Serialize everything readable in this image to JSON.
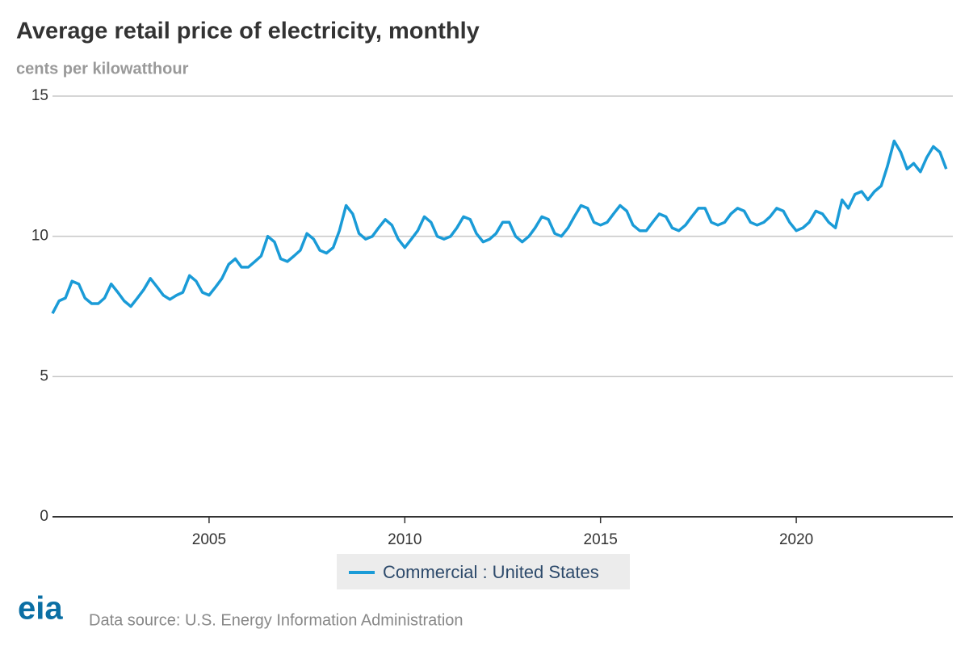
{
  "chart_data": {
    "type": "line",
    "title": "Average retail price of electricity, monthly",
    "subtitle": "cents per kilowatthour",
    "source": "Data source: U.S. Energy Information Administration",
    "logo": "eia",
    "xlim": [
      2001,
      2024
    ],
    "xticks": [
      2005,
      2010,
      2015,
      2020
    ],
    "ylim": [
      0,
      15
    ],
    "yticks": [
      0,
      5,
      10,
      15
    ],
    "grid": true,
    "x": [
      2001,
      2001.17,
      2001.33,
      2001.5,
      2001.67,
      2001.83,
      2002,
      2002.17,
      2002.33,
      2002.5,
      2002.67,
      2002.83,
      2003,
      2003.17,
      2003.33,
      2003.5,
      2003.67,
      2003.83,
      2004,
      2004.17,
      2004.33,
      2004.5,
      2004.67,
      2004.83,
      2005,
      2005.17,
      2005.33,
      2005.5,
      2005.67,
      2005.83,
      2006,
      2006.17,
      2006.33,
      2006.5,
      2006.67,
      2006.83,
      2007,
      2007.17,
      2007.33,
      2007.5,
      2007.67,
      2007.83,
      2008,
      2008.17,
      2008.33,
      2008.5,
      2008.67,
      2008.83,
      2009,
      2009.17,
      2009.33,
      2009.5,
      2009.67,
      2009.83,
      2010,
      2010.17,
      2010.33,
      2010.5,
      2010.67,
      2010.83,
      2011,
      2011.17,
      2011.33,
      2011.5,
      2011.67,
      2011.83,
      2012,
      2012.17,
      2012.33,
      2012.5,
      2012.67,
      2012.83,
      2013,
      2013.17,
      2013.33,
      2013.5,
      2013.67,
      2013.83,
      2014,
      2014.17,
      2014.33,
      2014.5,
      2014.67,
      2014.83,
      2015,
      2015.17,
      2015.33,
      2015.5,
      2015.67,
      2015.83,
      2016,
      2016.17,
      2016.33,
      2016.5,
      2016.67,
      2016.83,
      2017,
      2017.17,
      2017.33,
      2017.5,
      2017.67,
      2017.83,
      2018,
      2018.17,
      2018.33,
      2018.5,
      2018.67,
      2018.83,
      2019,
      2019.17,
      2019.33,
      2019.5,
      2019.67,
      2019.83,
      2020,
      2020.17,
      2020.33,
      2020.5,
      2020.67,
      2020.83,
      2021,
      2021.17,
      2021.33,
      2021.5,
      2021.67,
      2021.83,
      2022,
      2022.17,
      2022.33,
      2022.5,
      2022.67,
      2022.83,
      2023,
      2023.17,
      2023.33,
      2023.5,
      2023.67,
      2023.83
    ],
    "series": [
      {
        "name": "Commercial : United States",
        "color": "#1a9bd7",
        "values": [
          7.25,
          7.7,
          7.8,
          8.4,
          8.3,
          7.8,
          7.6,
          7.6,
          7.8,
          8.3,
          8.0,
          7.7,
          7.5,
          7.8,
          8.1,
          8.5,
          8.2,
          7.9,
          7.75,
          7.9,
          8.0,
          8.6,
          8.4,
          8.0,
          7.9,
          8.2,
          8.5,
          9.0,
          9.2,
          8.9,
          8.9,
          9.1,
          9.3,
          10.0,
          9.8,
          9.2,
          9.1,
          9.3,
          9.5,
          10.1,
          9.9,
          9.5,
          9.4,
          9.6,
          10.2,
          11.1,
          10.8,
          10.1,
          9.9,
          10.0,
          10.3,
          10.6,
          10.4,
          9.9,
          9.6,
          9.9,
          10.2,
          10.7,
          10.5,
          10.0,
          9.9,
          10.0,
          10.3,
          10.7,
          10.6,
          10.1,
          9.8,
          9.9,
          10.1,
          10.5,
          10.5,
          10.0,
          9.8,
          10.0,
          10.3,
          10.7,
          10.6,
          10.1,
          10.0,
          10.3,
          10.7,
          11.1,
          11.0,
          10.5,
          10.4,
          10.5,
          10.8,
          11.1,
          10.9,
          10.4,
          10.2,
          10.2,
          10.5,
          10.8,
          10.7,
          10.3,
          10.2,
          10.4,
          10.7,
          11.0,
          11.0,
          10.5,
          10.4,
          10.5,
          10.8,
          11.0,
          10.9,
          10.5,
          10.4,
          10.5,
          10.7,
          11.0,
          10.9,
          10.5,
          10.2,
          10.3,
          10.5,
          10.9,
          10.8,
          10.5,
          10.3,
          11.3,
          11.0,
          11.5,
          11.6,
          11.3,
          11.6,
          11.8,
          12.5,
          13.4,
          13.0,
          12.4,
          12.6,
          12.3,
          12.8,
          13.2,
          13.0,
          12.4
        ]
      }
    ]
  }
}
